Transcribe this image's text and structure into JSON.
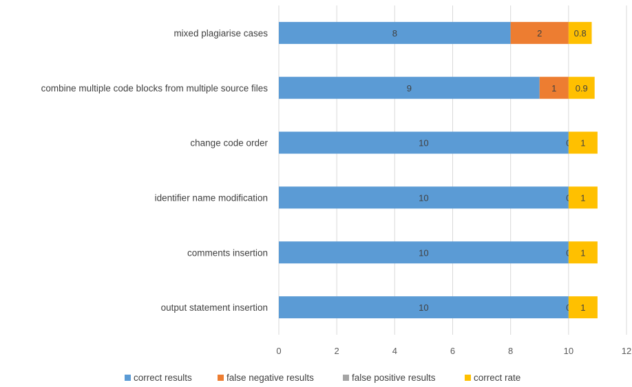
{
  "chart_data": {
    "type": "bar",
    "orientation": "horizontal",
    "stacked": true,
    "categories": [
      "mixed plagiarise cases",
      "combine multiple code blocks from multiple source files",
      "change code order",
      "identifier name modification",
      "comments insertion",
      "output statement insertion"
    ],
    "series": [
      {
        "name": "correct results",
        "color": "#5B9BD5",
        "values": [
          8,
          9,
          10,
          10,
          10,
          10
        ]
      },
      {
        "name": "false negative results",
        "color": "#ED7D31",
        "values": [
          2,
          1,
          0,
          0,
          0,
          0
        ]
      },
      {
        "name": "false positive results",
        "color": "#A5A5A5",
        "values": [
          0,
          0,
          0,
          0,
          0,
          0
        ]
      },
      {
        "name": "correct rate",
        "color": "#FFC000",
        "values": [
          0.8,
          0.9,
          1,
          1,
          1,
          1
        ]
      }
    ],
    "data_labels": [
      [
        "8",
        "2",
        "",
        "0.8"
      ],
      [
        "9",
        "1",
        "",
        "0.9"
      ],
      [
        "10",
        "0",
        "",
        "1"
      ],
      [
        "10",
        "0",
        "",
        "1"
      ],
      [
        "10",
        "0",
        "",
        "1"
      ],
      [
        "10",
        "0",
        "",
        "1"
      ]
    ],
    "xlim": [
      0,
      12
    ],
    "xticks": [
      "0",
      "2",
      "4",
      "6",
      "8",
      "10",
      "12"
    ],
    "grid": true,
    "legend_position": "bottom",
    "title": "",
    "xlabel": "",
    "ylabel": ""
  }
}
